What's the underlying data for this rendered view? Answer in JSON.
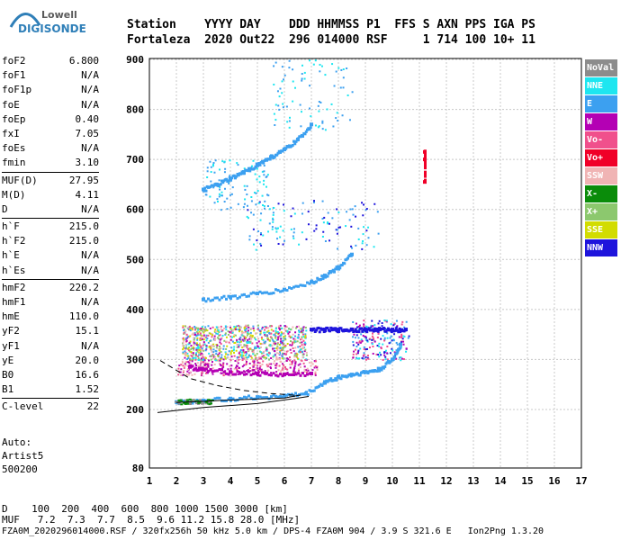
{
  "logo": {
    "line1": "Lowell",
    "line2": "DIGISONDE"
  },
  "header": {
    "row1": "Station    YYYY DAY    DDD HHMMSS P1  FFS S AXN PPS IGA PS",
    "row2": "Fortaleza  2020 Out22  296 014000 RSF     1 714 100 10+ 11"
  },
  "params": [
    [
      {
        "name": "foF2",
        "value": "6.800"
      },
      {
        "name": "foF1",
        "value": "N/A"
      },
      {
        "name": "foF1p",
        "value": "N/A"
      },
      {
        "name": "foE",
        "value": "N/A"
      },
      {
        "name": "foEp",
        "value": "0.40"
      },
      {
        "name": "fxI",
        "value": "7.05"
      },
      {
        "name": "foEs",
        "value": "N/A"
      },
      {
        "name": "fmin",
        "value": "3.10"
      }
    ],
    [
      {
        "name": "MUF(D)",
        "value": "27.95"
      },
      {
        "name": "M(D)",
        "value": "4.11"
      },
      {
        "name": "D",
        "value": "N/A"
      }
    ],
    [
      {
        "name": "h`F",
        "value": "215.0"
      },
      {
        "name": "h`F2",
        "value": "215.0"
      },
      {
        "name": "h`E",
        "value": "N/A"
      },
      {
        "name": "h`Es",
        "value": "N/A"
      }
    ],
    [
      {
        "name": "hmF2",
        "value": "220.2"
      },
      {
        "name": "hmF1",
        "value": "N/A"
      },
      {
        "name": "hmE",
        "value": "110.0"
      },
      {
        "name": "yF2",
        "value": "15.1"
      },
      {
        "name": "yF1",
        "value": "N/A"
      },
      {
        "name": "yE",
        "value": "20.0"
      },
      {
        "name": "B0",
        "value": "16.6"
      },
      {
        "name": "B1",
        "value": "1.52"
      }
    ],
    [
      {
        "name": "C-level",
        "value": "22"
      }
    ]
  ],
  "auto": {
    "line1": "Auto:",
    "line2": "Artist5",
    "line3": "500200"
  },
  "legend": [
    {
      "label": "NoVal",
      "color": "#8c8c8c"
    },
    {
      "label": "NNE",
      "color": "#1ee6f0"
    },
    {
      "label": "E",
      "color": "#3ca0f0"
    },
    {
      "label": "W",
      "color": "#b400b4"
    },
    {
      "label": "Vo-",
      "color": "#f0508c"
    },
    {
      "label": "Vo+",
      "color": "#f00028"
    },
    {
      "label": "SSW",
      "color": "#f0b4b4"
    },
    {
      "label": "X-",
      "color": "#0a8c0a"
    },
    {
      "label": "X+",
      "color": "#8cc86e"
    },
    {
      "label": "SSE",
      "color": "#d2dc00"
    },
    {
      "label": "NNW",
      "color": "#1e14dc"
    }
  ],
  "footer": {
    "d_row": "D    100  200  400  600  800 1000 1500 3000 [km]",
    "muf_row": "MUF   7.2  7.3  7.7  8.5  9.6 11.2 15.8 28.0 [MHz]",
    "file_row": "FZA0M_2020296014000.RSF / 320fx256h 50 kHz 5.0 km / DPS-4 FZA0M 904 / 3.9 S 321.6 E   Ion2Png 1.3.20"
  },
  "chart_data": {
    "type": "scatter",
    "x_ticks": [
      "1",
      "2",
      "3",
      "4",
      "5",
      "6",
      "7",
      "8",
      "9",
      "10",
      "11",
      "12",
      "13",
      "14",
      "15",
      "16",
      "17"
    ],
    "y_ticks": [
      "80",
      "200",
      "300",
      "400",
      "500",
      "600",
      "700",
      "800",
      "900"
    ],
    "xlim": [
      1,
      17
    ],
    "ylim": [
      80,
      900
    ],
    "grid": true,
    "traces": [
      {
        "name": "E",
        "color": "#3ca0f0",
        "x": [
          2.0,
          3.0,
          4.0,
          5.0,
          6.0,
          6.8,
          7.5,
          8.0,
          8.5,
          9.0,
          9.5,
          10.0,
          10.3
        ],
        "y": [
          215,
          218,
          222,
          225,
          228,
          232,
          255,
          265,
          270,
          275,
          280,
          300,
          330
        ]
      },
      {
        "name": "E",
        "color": "#3ca0f0",
        "x": [
          3.0,
          4.0,
          5.0,
          6.0,
          7.0,
          7.5,
          8.0,
          8.5
        ],
        "y": [
          420,
          425,
          432,
          440,
          455,
          468,
          485,
          510
        ]
      },
      {
        "name": "E",
        "color": "#3ca0f0",
        "x": [
          3.0,
          3.5,
          4.0,
          4.5,
          5.0,
          5.5,
          6.0,
          6.5,
          7.0
        ],
        "y": [
          640,
          650,
          662,
          675,
          690,
          705,
          720,
          740,
          770
        ]
      },
      {
        "name": "NNW",
        "color": "#1e14dc",
        "x": [
          7.0,
          7.5,
          8.0,
          8.5,
          9.0,
          9.5,
          10.0,
          10.5
        ],
        "y": [
          360,
          360,
          360,
          360,
          360,
          360,
          360,
          360
        ]
      },
      {
        "name": "W",
        "color": "#b400b4",
        "x": [
          2.5,
          3.0,
          4.0,
          5.0,
          6.0,
          7.0
        ],
        "y": [
          285,
          280,
          275,
          272,
          270,
          272
        ]
      },
      {
        "name": "Vo+",
        "color": "#f00028",
        "x": [
          11.2,
          11.2,
          11.2
        ],
        "y": [
          715,
          700,
          655
        ]
      }
    ]
  }
}
